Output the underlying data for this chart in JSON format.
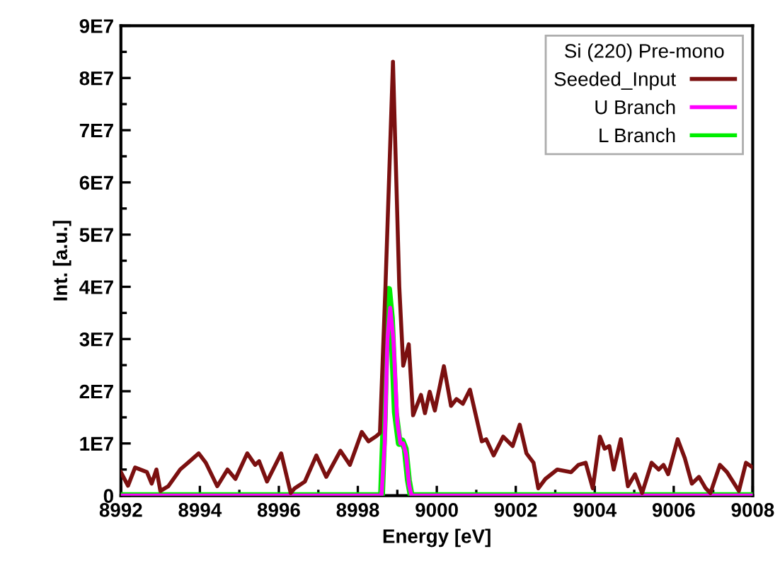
{
  "chart_data": {
    "type": "line",
    "xlabel": "Energy [eV]",
    "ylabel": "Int. [a.u.]",
    "legend_title": "Si (220) Pre-mono",
    "legend": "top right",
    "grid": false,
    "marker": "none",
    "line_style": "solid",
    "xlim": [
      8992,
      9008
    ],
    "xticks": [
      8992,
      8994,
      8996,
      8998,
      9000,
      9002,
      9004,
      9006,
      9008
    ],
    "ylim": [
      0,
      90000000
    ],
    "yticks": [
      0,
      {
        "value": 10000000,
        "label": "1E7"
      },
      {
        "value": 20000000,
        "label": "2E7"
      },
      {
        "value": 30000000,
        "label": "3E7"
      },
      {
        "value": 40000000,
        "label": "4E7"
      },
      {
        "value": 50000000,
        "label": "5E7"
      },
      {
        "value": 60000000,
        "label": "6E7"
      },
      {
        "value": 70000000,
        "label": "7E7"
      },
      {
        "value": 80000000,
        "label": "8E7"
      },
      {
        "value": 90000000,
        "label": "9E7"
      }
    ],
    "series": [
      {
        "name": "Seeded_Input",
        "color": "#7b1010",
        "x": [
          8992.0,
          8992.18,
          8992.36,
          8992.66,
          8992.78,
          8992.9,
          8993.0,
          8993.2,
          8993.5,
          8993.7,
          8993.97,
          8994.15,
          8994.44,
          8994.7,
          8994.9,
          8995.2,
          8995.4,
          8995.5,
          8995.7,
          8996.06,
          8996.3,
          8996.4,
          8996.66,
          8996.95,
          8997.2,
          8997.56,
          8997.8,
          8998.1,
          8998.27,
          8998.45,
          8998.56,
          8998.7,
          8998.89,
          8999.05,
          8999.15,
          8999.29,
          8999.4,
          8999.6,
          8999.7,
          8999.82,
          8999.95,
          9000.18,
          9000.36,
          9000.5,
          9000.66,
          9000.84,
          9001.14,
          9001.25,
          9001.44,
          9001.68,
          9001.92,
          9002.1,
          9002.27,
          9002.45,
          9002.57,
          9002.75,
          9003.05,
          9003.4,
          9003.59,
          9003.77,
          9003.95,
          9004.13,
          9004.25,
          9004.37,
          9004.48,
          9004.66,
          9004.84,
          9005.02,
          9005.2,
          9005.44,
          9005.62,
          9005.74,
          9005.86,
          9006.1,
          9006.28,
          9006.46,
          9006.64,
          9006.81,
          9006.93,
          9007.17,
          9007.35,
          9007.65,
          9007.83,
          9008.0
        ],
        "values": [
          4500000,
          1900000,
          5400000,
          4500000,
          2300000,
          5000000,
          900000,
          1800000,
          5000000,
          6300000,
          8100000,
          6300000,
          1800000,
          5000000,
          3200000,
          8100000,
          5900000,
          6600000,
          2700000,
          8100000,
          500000,
          1400000,
          2700000,
          7700000,
          3600000,
          8600000,
          5900000,
          12200000,
          10400000,
          11300000,
          12000000,
          40000000,
          83100000,
          40000000,
          24900000,
          29000000,
          15400000,
          19300000,
          15800000,
          19900000,
          16300000,
          24800000,
          17200000,
          18500000,
          17600000,
          20300000,
          10400000,
          10800000,
          7700000,
          11300000,
          9500000,
          13600000,
          8100000,
          6300000,
          1400000,
          3200000,
          5000000,
          4500000,
          5900000,
          6300000,
          1400000,
          11300000,
          9000000,
          9500000,
          5000000,
          10800000,
          1800000,
          4100000,
          500000,
          6300000,
          5000000,
          5900000,
          4100000,
          10800000,
          7200000,
          2300000,
          3600000,
          1400000,
          500000,
          5900000,
          4500000,
          900000,
          6300000,
          5400000
        ]
      },
      {
        "name": "U Branch",
        "color": "#ff00ff",
        "x": [
          8992.0,
          8998.6,
          8998.68,
          8998.75,
          8998.82,
          8998.9,
          8999.0,
          8999.08,
          8999.15,
          8999.22,
          8999.3,
          8999.36,
          9008.0
        ],
        "values": [
          0,
          0,
          10000000,
          30000000,
          36000000,
          30000000,
          14000000,
          10000000,
          10000000,
          8000000,
          2000000,
          0,
          0
        ]
      },
      {
        "name": "L Branch",
        "color": "#00ee00",
        "x": [
          8992.0,
          8998.6,
          8998.67,
          8998.73,
          8998.78,
          8998.85,
          8998.95,
          8999.05,
          8999.12,
          8999.2,
          8999.28,
          8999.35,
          9008.0
        ],
        "values": [
          0,
          0,
          15000000,
          36000000,
          39500000,
          34000000,
          16000000,
          10000000,
          10500000,
          9000000,
          3000000,
          0,
          0
        ]
      }
    ]
  }
}
